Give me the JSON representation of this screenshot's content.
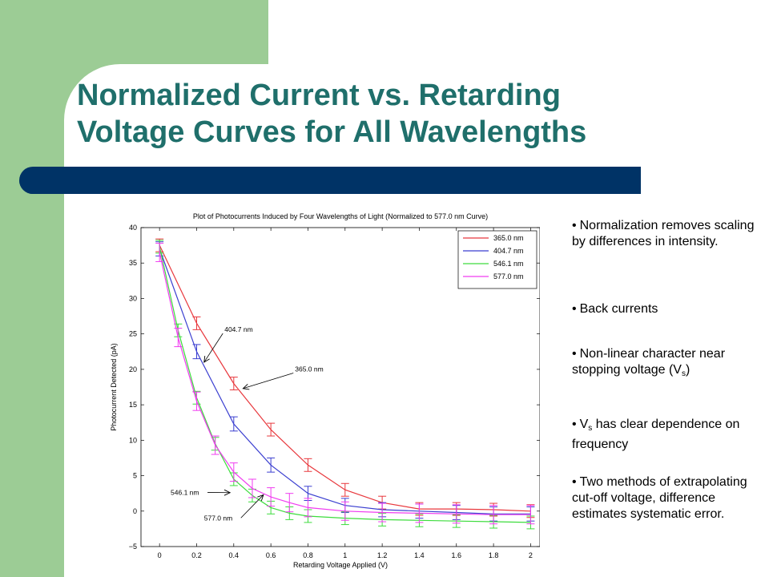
{
  "slide": {
    "title_line1": "Normalized Current vs. Retarding",
    "title_line2": "Voltage Curves for All Wavelengths",
    "colors": {
      "green_band": "#9ccc95",
      "title_text": "#1f6f6b",
      "title_bar": "#003366"
    }
  },
  "bullets": [
    {
      "text": "Normalization removes scaling by differences in intensity."
    },
    {
      "text": "Back currents"
    },
    {
      "text_before": "Non-linear character near stopping voltage (V",
      "sub": "s",
      "text_after": ")"
    },
    {
      "text_before": "V",
      "sub": "s",
      "text_after": " has clear dependence on frequency"
    },
    {
      "text": "Two methods of extrapolating cut-off voltage, difference estimates systematic error."
    }
  ],
  "chart_data": {
    "type": "line",
    "title": "Plot of Photocurrents Induced by Four Wavelengths of Light (Normalized to 577.0 nm Curve)",
    "xlabel": "Retarding Voltage Applied (V)",
    "ylabel": "Photocurrent Detected (pA)",
    "xlim": [
      -0.1,
      2.05
    ],
    "ylim": [
      -5,
      40
    ],
    "xticks": [
      0,
      0.2,
      0.4,
      0.6,
      0.8,
      1,
      1.2,
      1.4,
      1.6,
      1.8,
      2
    ],
    "xtick_labels": [
      "0",
      "0.2",
      "0.4",
      "0.6",
      "0.8",
      "1",
      "1.2",
      "1.4",
      "1.6",
      "1.8",
      "2"
    ],
    "yticks": [
      -5,
      0,
      5,
      10,
      15,
      20,
      25,
      30,
      35,
      40
    ],
    "ytick_labels": [
      "−5",
      "0",
      "5",
      "10",
      "15",
      "20",
      "25",
      "30",
      "35",
      "40"
    ],
    "grid": false,
    "legend": "top-right",
    "series": [
      {
        "name": "365.0 nm",
        "color": "#e8383d",
        "x": [
          0,
          0.2,
          0.4,
          0.6,
          0.8,
          1.0,
          1.2,
          1.4,
          1.6,
          1.8,
          2.0
        ],
        "y": [
          37.5,
          26.5,
          18,
          11.5,
          6.5,
          3,
          1.2,
          0.3,
          0.3,
          0.2,
          0.0
        ],
        "err": 0.9
      },
      {
        "name": "404.7 nm",
        "color": "#3b3fd0",
        "x": [
          0,
          0.2,
          0.4,
          0.6,
          0.8,
          1.0,
          1.2,
          1.4,
          1.6,
          1.8,
          2.0
        ],
        "y": [
          37,
          22.5,
          12.3,
          6.5,
          2.5,
          0.8,
          0.2,
          0.0,
          -0.2,
          -0.4,
          -0.4
        ],
        "err": 1.0
      },
      {
        "name": "546.1 nm",
        "color": "#3ddc3d",
        "x": [
          0,
          0.1,
          0.2,
          0.3,
          0.4,
          0.5,
          0.6,
          0.7,
          0.8,
          1.0,
          1.2,
          1.4,
          1.6,
          1.8,
          2.0
        ],
        "y": [
          37.3,
          25.5,
          16,
          9.5,
          4.5,
          2.2,
          0.5,
          -0.3,
          -0.7,
          -1.0,
          -1.2,
          -1.3,
          -1.4,
          -1.5,
          -1.6
        ],
        "err": 0.9
      },
      {
        "name": "577.0 nm",
        "color": "#f03cf0",
        "x": [
          0,
          0.1,
          0.2,
          0.3,
          0.4,
          0.5,
          0.6,
          0.7,
          0.8,
          1.0,
          1.2,
          1.4,
          1.6,
          1.8,
          2.0
        ],
        "y": [
          36.5,
          24.5,
          15.5,
          9.3,
          5.5,
          3.2,
          2,
          1.2,
          0.5,
          0.0,
          -0.2,
          -0.3,
          -0.4,
          -0.5,
          -0.5
        ],
        "err": 1.3
      }
    ],
    "annotations": [
      {
        "text": "404.7 nm",
        "text_x": 0.35,
        "text_y": 25.3,
        "arrow_to_x": 0.24,
        "arrow_to_y": 21.0
      },
      {
        "text": "365.0 nm",
        "text_x": 0.73,
        "text_y": 19.7,
        "arrow_to_x": 0.45,
        "arrow_to_y": 17.3
      },
      {
        "text": "546.1 nm",
        "text_x": 0.06,
        "text_y": 2.3,
        "arrow_to_x": 0.38,
        "arrow_to_y": 2.6
      },
      {
        "text": "577.0 nm",
        "text_x": 0.24,
        "text_y": -1.3,
        "arrow_to_x": 0.56,
        "arrow_to_y": 2.3
      }
    ]
  }
}
